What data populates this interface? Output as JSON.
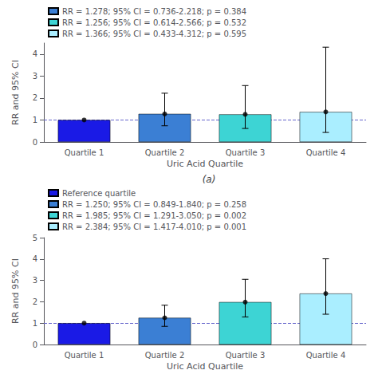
{
  "chart_data": [
    {
      "type": "bar",
      "categories": [
        "Quartile 1",
        "Quartile 2",
        "Quartile 3",
        "Quartile 4"
      ],
      "values": [
        1.0,
        1.278,
        1.256,
        1.366
      ],
      "colors": [
        "#1A1AE6",
        "#3B7FD4",
        "#3DD4D4",
        "#AAEEFF"
      ],
      "ci_low": [
        null,
        0.736,
        0.614,
        0.433
      ],
      "ci_high": [
        null,
        2.218,
        2.566,
        4.312
      ],
      "xlabel": "Uric Acid Quartile",
      "ylabel": "RR and 95% CI",
      "ylim": [
        0,
        4.5
      ],
      "yticks": [
        0,
        1,
        2,
        3,
        4
      ],
      "grid": false,
      "legend": "upper left",
      "legend_entries": [
        {
          "color": "#3B7FD4",
          "label": "RR = 1.278; 95% CI = 0.736-2.218; p = 0.384"
        },
        {
          "color": "#3DD4D4",
          "label": "RR = 1.256; 95% CI = 0.614-2.566; p = 0.532"
        },
        {
          "color": "#AAEEFF",
          "label": "RR = 1.366; 95% CI = 0.433-4.312; p = 0.595"
        }
      ],
      "hline": 1.0,
      "hline_color": "#6666CC",
      "error_color": "black",
      "point_color": "black",
      "panel_label": "(a)"
    },
    {
      "type": "bar",
      "categories": [
        "Quartile 1",
        "Quartile 2",
        "Quartile 3",
        "Quartile 4"
      ],
      "values": [
        1.0,
        1.25,
        1.985,
        2.384
      ],
      "colors": [
        "#1A1AE6",
        "#3B7FD4",
        "#3DD4D4",
        "#AAEEFF"
      ],
      "ci_low": [
        null,
        0.849,
        1.291,
        1.417
      ],
      "ci_high": [
        null,
        1.84,
        3.05,
        4.01
      ],
      "xlabel": "Uric Acid Quartile",
      "ylabel": "RR and 95% CI",
      "ylim": [
        0,
        5.0
      ],
      "yticks": [
        0,
        1,
        2,
        3,
        4,
        5
      ],
      "grid": false,
      "legend": "upper left",
      "legend_entries": [
        {
          "color": "#1A1AE6",
          "label": "Reference quartile"
        },
        {
          "color": "#3B7FD4",
          "label": "RR = 1.250; 95% CI = 0.849-1.840; p = 0.258"
        },
        {
          "color": "#3DD4D4",
          "label": "RR = 1.985; 95% CI = 1.291-3.050; p = 0.002"
        },
        {
          "color": "#AAEEFF",
          "label": "RR = 2.384; 95% CI = 1.417-4.010; p = 0.001"
        }
      ],
      "hline": 1.0,
      "hline_color": "#6666CC",
      "error_color": "black",
      "point_color": "black"
    }
  ]
}
